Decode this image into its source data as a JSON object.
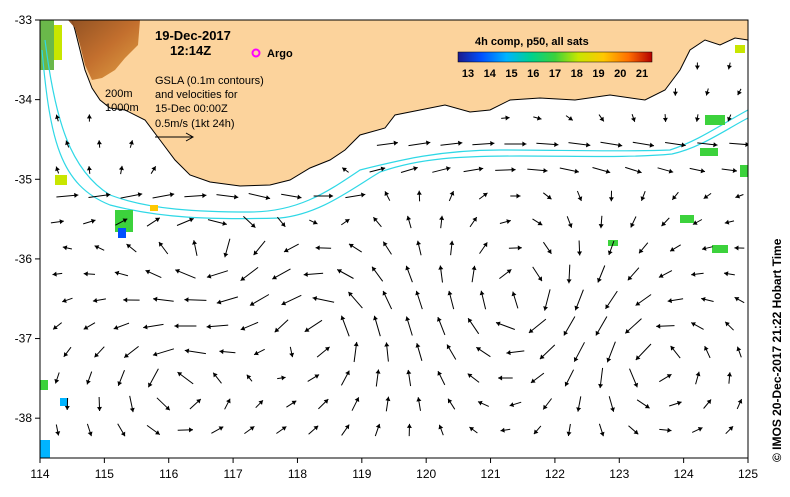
{
  "header": {
    "date": "19-Dec-2017",
    "time": "12:14Z"
  },
  "argo_label": "Argo",
  "legend": {
    "title": "4h comp, p50, all sats",
    "ticks": [
      "13",
      "14",
      "15",
      "16",
      "17",
      "18",
      "19",
      "20",
      "21"
    ],
    "color_range": [
      13,
      21
    ]
  },
  "notes": {
    "contour_200": "200m",
    "contour_1000": "1000m",
    "gsla_lines": [
      "GSLA (0.1m contours)",
      "and velocities for",
      "15-Dec 00:00Z",
      "0.5m/s (1kt 24h)"
    ]
  },
  "credit": "© IMOS 20-Dec-2017 21:22 Hobart Time",
  "map_data": {
    "type": "map",
    "lon_range": [
      114,
      125
    ],
    "lat_range": [
      -38.5,
      -33
    ],
    "x_ticks": [
      "114",
      "115",
      "116",
      "117",
      "118",
      "119",
      "120",
      "121",
      "122",
      "123",
      "124",
      "125"
    ],
    "y_ticks": [
      "-33",
      "-34",
      "-35",
      "-36",
      "-37",
      "-38"
    ],
    "colors": {
      "land": "#fcd39c",
      "coastline": "#000000",
      "isobath": "#2fd8e6",
      "arrows": "#000000",
      "argo": "#ff00ff"
    }
  }
}
